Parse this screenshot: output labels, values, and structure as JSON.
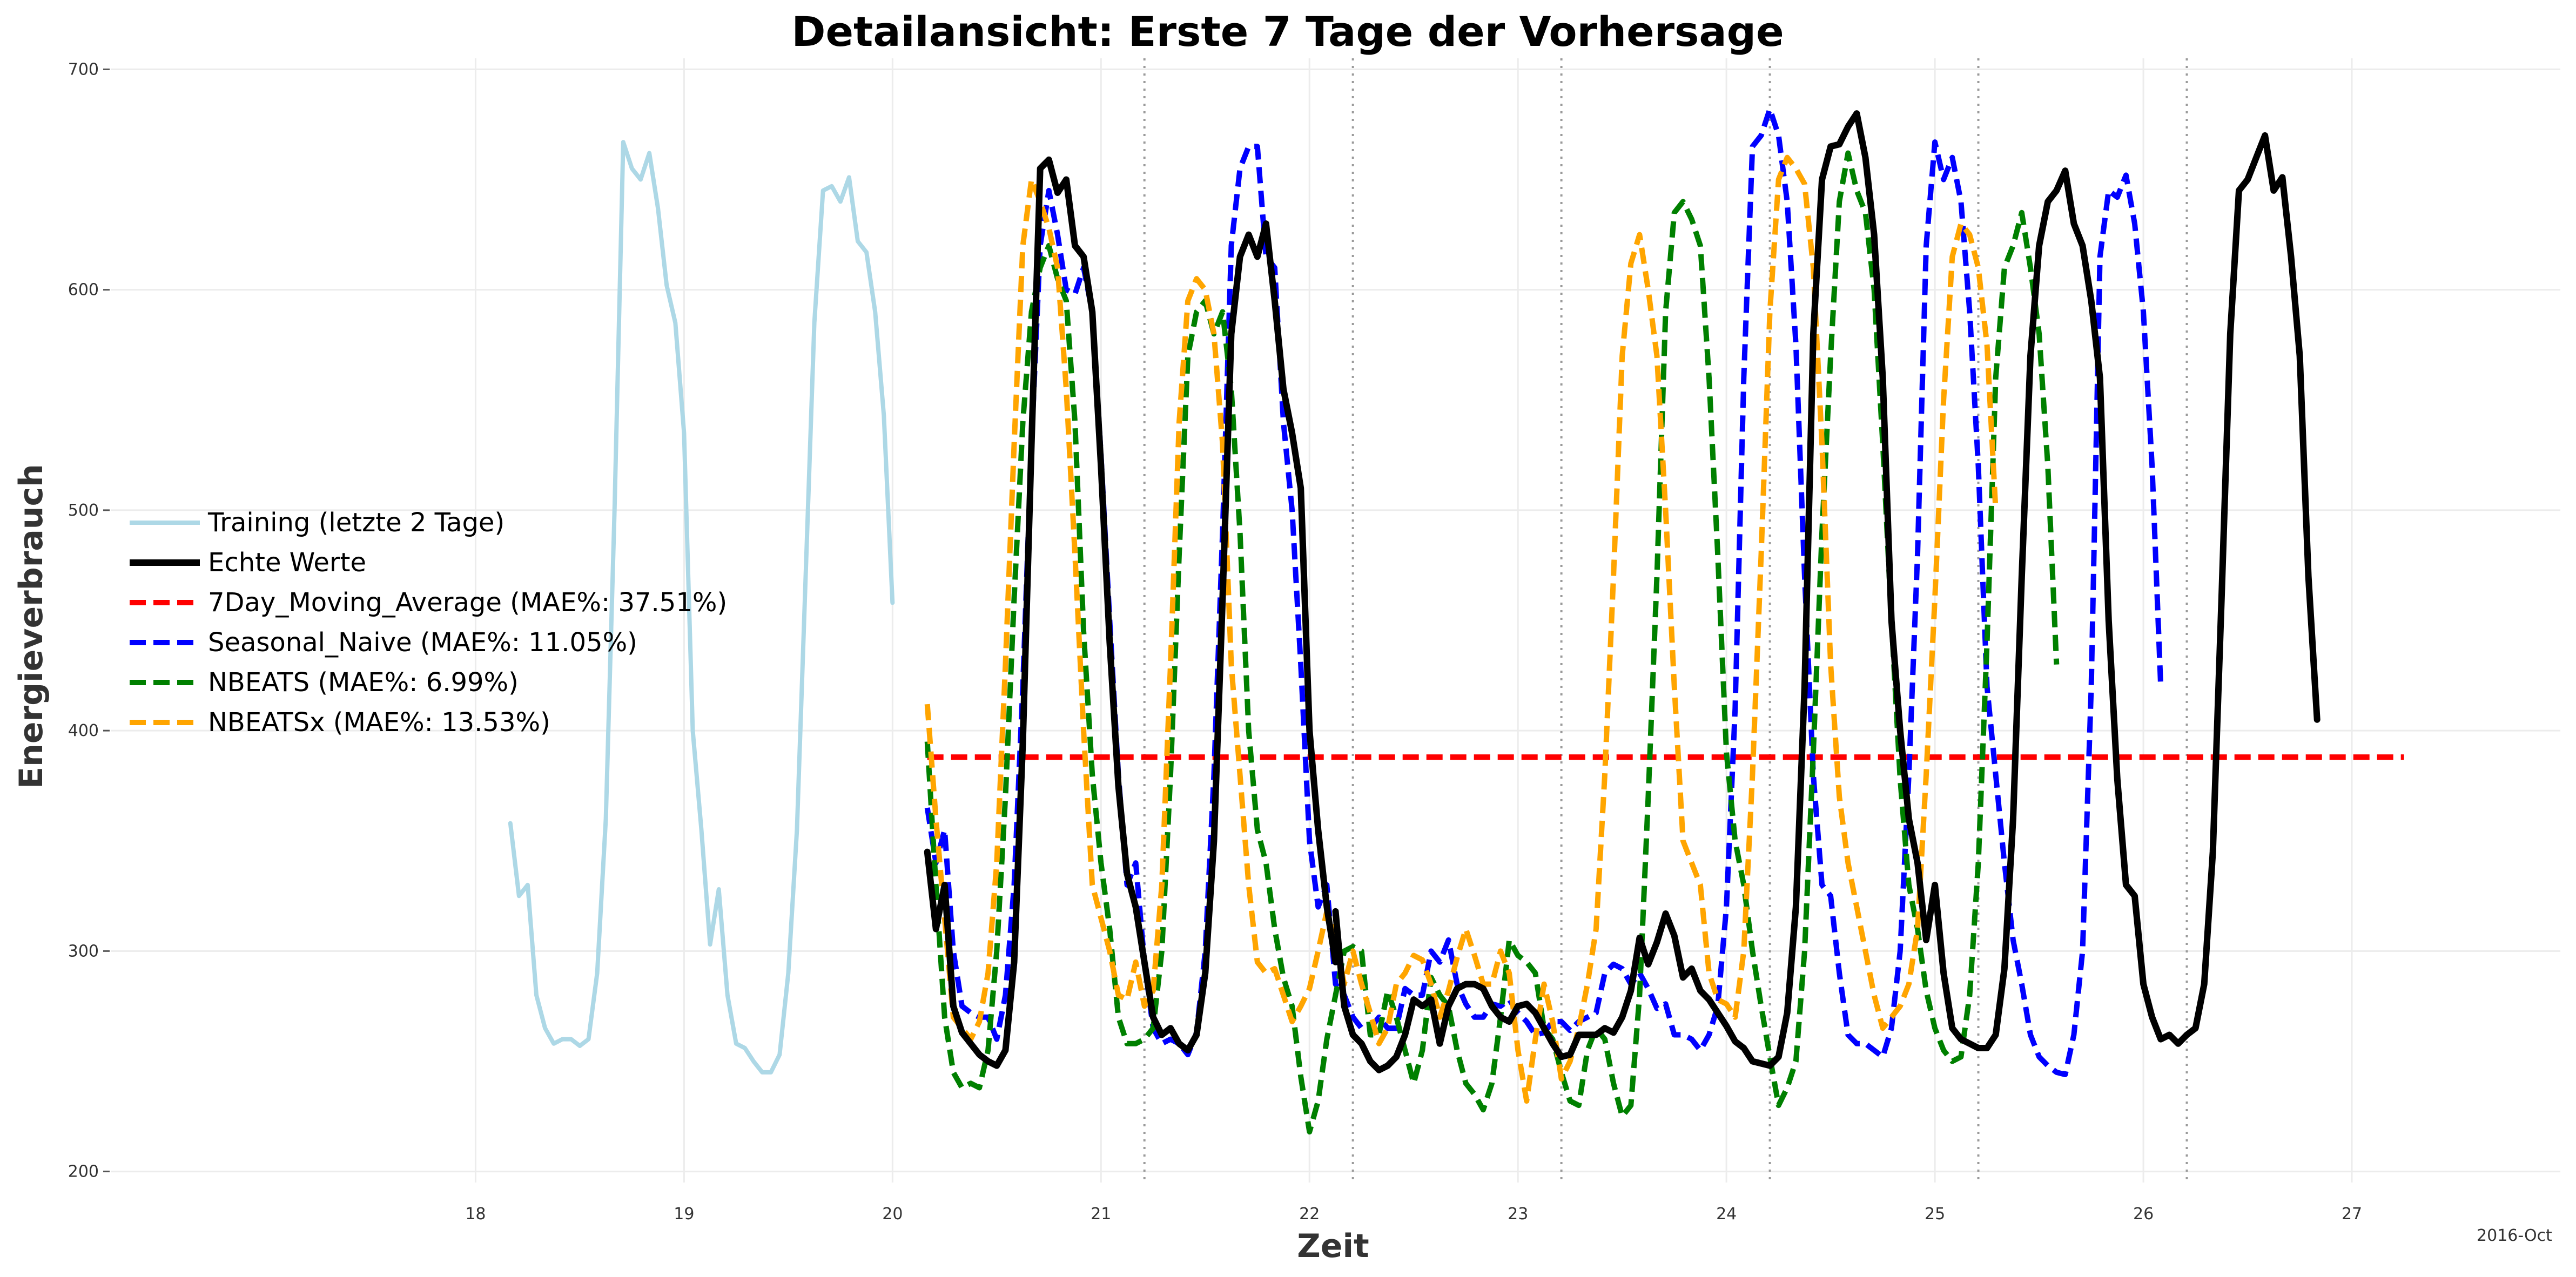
{
  "chart_data": {
    "type": "line",
    "title": "Detailansicht: Erste 7 Tage der Vorhersage",
    "xlabel": "Zeit",
    "ylabel": "Energieverbrauch",
    "x_unit": "hours from 2016-10-17 00:00",
    "xlim": [
      -18,
      264
    ],
    "ylim": [
      195,
      705
    ],
    "x_ticks": [
      {
        "value": 24,
        "label": "18"
      },
      {
        "value": 48,
        "label": "19"
      },
      {
        "value": 72,
        "label": "20"
      },
      {
        "value": 96,
        "label": "21"
      },
      {
        "value": 120,
        "label": "22"
      },
      {
        "value": 144,
        "label": "23"
      },
      {
        "value": 168,
        "label": "24"
      },
      {
        "value": 192,
        "label": "25"
      },
      {
        "value": 216,
        "label": "26"
      },
      {
        "value": 240,
        "label": "27"
      }
    ],
    "x_offset_label": "2016-Oct",
    "y_ticks": [
      200,
      300,
      400,
      500,
      600,
      700
    ],
    "grid": true,
    "day_separators": [
      101,
      125,
      149,
      173,
      197,
      221
    ],
    "legend_position": "center-left",
    "series": [
      {
        "name": "Training (letzte 2 Tage)",
        "color": "#add8e6",
        "style": "solid",
        "x_start": 28,
        "x_step": 1,
        "values": [
          358,
          325,
          330,
          280,
          265,
          258,
          260,
          260,
          257,
          260,
          290,
          360,
          500,
          667,
          655,
          650,
          662,
          637,
          602,
          585,
          535,
          400,
          355,
          303,
          328,
          280,
          258,
          256,
          250,
          245,
          245,
          253,
          290,
          355,
          470,
          585,
          645,
          647,
          640,
          651,
          622,
          617,
          590,
          543,
          458
        ]
      },
      {
        "name": "Echte Werte",
        "color": "#000000",
        "style": "solid",
        "x_start": 76,
        "x_step": 1,
        "segments": [
          [
            345,
            310,
            330,
            275,
            263,
            258,
            253,
            250,
            248,
            255,
            295,
            395,
            530,
            655,
            659,
            644,
            650,
            620,
            615,
            590,
            520,
            440,
            375,
            335,
            320,
            295,
            270,
            262,
            265,
            258,
            255,
            262,
            290,
            350,
            460,
            580,
            615,
            625,
            615,
            630,
            595,
            555,
            535,
            510,
            400,
            355,
            320,
            295
          ],
          [
            318,
            275,
            262,
            258,
            250,
            246,
            248,
            252,
            262,
            278,
            275,
            278,
            258,
            275,
            283,
            285,
            285,
            283,
            275,
            270,
            268,
            275,
            276,
            272,
            265,
            258,
            252,
            253,
            262,
            262,
            262,
            265,
            263,
            270,
            282,
            306,
            294,
            304,
            317,
            307,
            288,
            292,
            282,
            278,
            272,
            266,
            259,
            256,
            250,
            249,
            248,
            252,
            272,
            320,
            420,
            580,
            650,
            665,
            666,
            674,
            680,
            660,
            625,
            560,
            450,
            400,
            360,
            340,
            305,
            330,
            290,
            265,
            260,
            258,
            256,
            256,
            262,
            292,
            360,
            470,
            570,
            620,
            640,
            645,
            654,
            630,
            620,
            595,
            560,
            450,
            378,
            330,
            325,
            285,
            270,
            260,
            262,
            258,
            262,
            265,
            285,
            345,
            460,
            580,
            645,
            650,
            660,
            670,
            645,
            651,
            615,
            570,
            470,
            405
          ]
        ]
      },
      {
        "name": "7Day_Moving_Average (MAE%: 37.51%)",
        "color": "#ff0000",
        "style": "dashed",
        "x": [
          76,
          246
        ],
        "values": [
          388,
          388
        ]
      },
      {
        "name": "Seasonal_Naive (MAE%: 11.05%)",
        "color": "#0000ff",
        "style": "dashed",
        "x_start": 76,
        "x_step": 1,
        "values": [
          365,
          340,
          355,
          300,
          275,
          272,
          270,
          270,
          260,
          280,
          330,
          420,
          530,
          620,
          645,
          625,
          600,
          598,
          610,
          590,
          525,
          450,
          380,
          330,
          340,
          295,
          265,
          258,
          260,
          258,
          253,
          263,
          300,
          380,
          490,
          620,
          655,
          665,
          665,
          615,
          610,
          540,
          500,
          430,
          350,
          320,
          330,
          285,
          280,
          270,
          265,
          265,
          270,
          265,
          265,
          283,
          280,
          280,
          300,
          295,
          305,
          285,
          276,
          270,
          270,
          276,
          275,
          278,
          272,
          268,
          262,
          263,
          268,
          268,
          264,
          268,
          270,
          272,
          290,
          294,
          292,
          285,
          290,
          283,
          274,
          276,
          262,
          262,
          260,
          255,
          262,
          275,
          320,
          410,
          560,
          665,
          670,
          682,
          670,
          640,
          575,
          470,
          380,
          330,
          325,
          290,
          262,
          258,
          258,
          255,
          252,
          265,
          300,
          380,
          480,
          620,
          667,
          650,
          660,
          640,
          590,
          520,
          420,
          380,
          340,
          305,
          285,
          262,
          252,
          248,
          245,
          244,
          262,
          300,
          420,
          615,
          645,
          642,
          652,
          630,
          590,
          520,
          420
        ]
      },
      {
        "name": "NBEATS (MAE%: 6.99%)",
        "color": "#008000",
        "style": "dashed",
        "x_start": 76,
        "x_step": 1,
        "values": [
          395,
          330,
          270,
          245,
          238,
          240,
          238,
          255,
          300,
          370,
          460,
          540,
          590,
          610,
          620,
          605,
          595,
          540,
          445,
          380,
          340,
          310,
          270,
          258,
          258,
          260,
          265,
          300,
          380,
          480,
          570,
          590,
          595,
          580,
          590,
          555,
          490,
          400,
          355,
          340,
          310,
          288,
          275,
          243,
          218,
          232,
          260,
          280,
          300,
          302,
          300,
          262,
          262,
          282,
          270,
          255,
          240,
          255,
          288,
          280,
          275,
          255,
          240,
          235,
          228,
          240,
          270,
          305,
          298,
          295,
          290,
          265,
          260,
          245,
          232,
          230,
          255,
          265,
          260,
          240,
          225,
          230,
          280,
          370,
          470,
          590,
          635,
          640,
          632,
          620,
          560,
          480,
          390,
          350,
          330,
          300,
          275,
          252,
          230,
          238,
          250,
          300,
          390,
          490,
          570,
          640,
          662,
          645,
          635,
          600,
          530,
          450,
          378,
          330,
          310,
          282,
          265,
          255,
          250,
          252,
          280,
          340,
          440,
          560,
          610,
          620,
          635,
          610,
          580,
          520,
          430
        ]
      },
      {
        "name": "NBEATSx (MAE%: 13.53%)",
        "color": "#ffa500",
        "style": "dashed",
        "x_start": 76,
        "x_step": 1,
        "values": [
          412,
          360,
          315,
          270,
          265,
          260,
          268,
          290,
          340,
          430,
          530,
          620,
          650,
          640,
          628,
          610,
          555,
          480,
          400,
          330,
          315,
          300,
          280,
          278,
          295,
          275,
          282,
          330,
          430,
          540,
          595,
          605,
          600,
          580,
          530,
          430,
          380,
          330,
          295,
          290,
          292,
          280,
          268,
          275,
          283,
          300,
          318,
          305,
          285,
          300,
          285,
          272,
          258,
          265,
          285,
          290,
          298,
          296,
          285,
          270,
          282,
          297,
          310,
          298,
          285,
          285,
          300,
          290,
          255,
          232,
          260,
          285,
          268,
          242,
          250,
          265,
          285,
          310,
          380,
          470,
          570,
          612,
          625,
          600,
          570,
          500,
          420,
          350,
          340,
          330,
          290,
          278,
          276,
          270,
          300,
          380,
          480,
          590,
          650,
          660,
          655,
          648,
          610,
          530,
          430,
          370,
          340,
          320,
          300,
          280,
          265,
          270,
          275,
          285,
          310,
          380,
          460,
          550,
          615,
          630,
          625,
          610,
          575,
          500
        ]
      }
    ]
  }
}
